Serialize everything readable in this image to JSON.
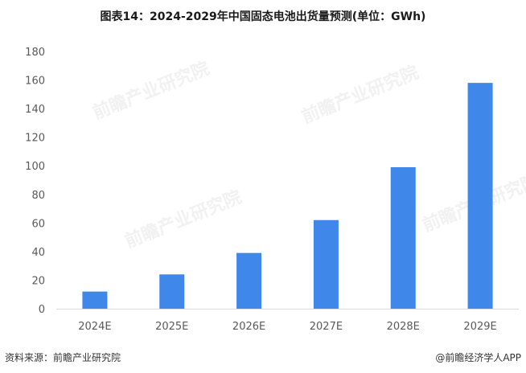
{
  "title": "图表14：2024-2029年中国固态电池出货量预测(单位：GWh)",
  "footer": {
    "source": "资料来源：前瞻产业研究院",
    "brand": "@前瞻经济学人APP"
  },
  "watermark": {
    "text": "前瞻产业研究院"
  },
  "colors": {
    "bar": "#3f87e8",
    "axis": "#d9d9d9",
    "tick_text": "#595959"
  },
  "chart_data": {
    "type": "bar",
    "title": "图表14：2024-2029年中国固态电池出货量预测(单位：GWh)",
    "categories": [
      "2024E",
      "2025E",
      "2026E",
      "2027E",
      "2028E",
      "2029E"
    ],
    "series": [
      {
        "values": [
          12,
          24,
          39,
          62,
          99,
          158
        ]
      }
    ],
    "ylim": [
      0,
      180
    ],
    "yticks": [
      0,
      20,
      40,
      60,
      80,
      100,
      120,
      140,
      160,
      180
    ],
    "grid": false,
    "legend": "none",
    "xlabel": "",
    "ylabel": ""
  }
}
